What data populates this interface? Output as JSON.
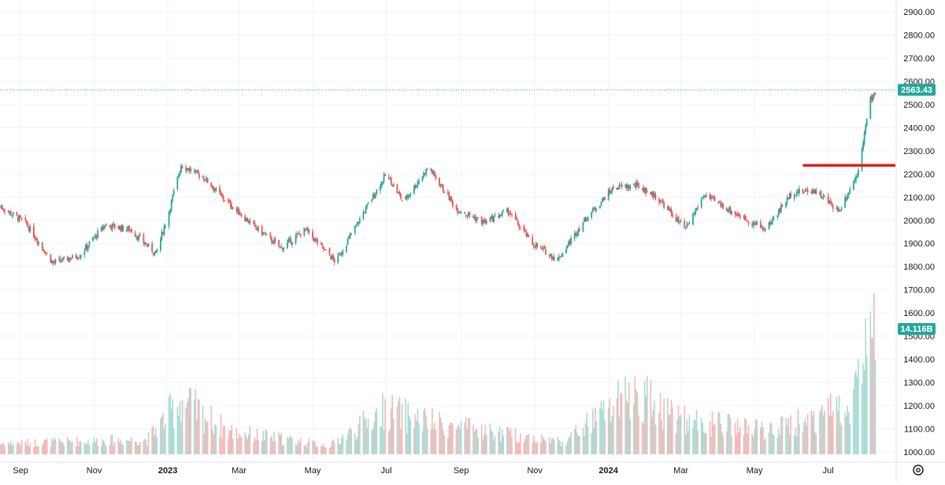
{
  "chart_data": {
    "type": "candlestick",
    "price_axis": {
      "ticks": [
        "2900.00",
        "2800.00",
        "2700.00",
        "2600.00",
        "2500.00",
        "2400.00",
        "2300.00",
        "2200.00",
        "2100.00",
        "2000.00",
        "1900.00",
        "1800.00",
        "1700.00",
        "1600.00",
        "1500.00",
        "1400.00",
        "1300.00",
        "1200.00",
        "1100.00",
        "1000.00"
      ],
      "range": [
        990,
        2950
      ]
    },
    "time_axis": {
      "labels": [
        "Sep",
        "Nov",
        "2023",
        "Mar",
        "May",
        "Jul",
        "Sep",
        "Nov",
        "2024",
        "Mar",
        "May",
        "Jul"
      ],
      "strong": [
        "2023",
        "2024"
      ],
      "range": [
        "2022-08-15",
        "2024-08-10"
      ]
    },
    "last_price": "2563.43",
    "last_volume": "14.116B",
    "last_price_value": 2563.43,
    "resistance_line": 2237,
    "colors": {
      "up": "#26a69a",
      "down": "#ef5350",
      "vol_up": "#a8dcd5",
      "vol_down": "#f7b8b6",
      "line": "#e31b1b",
      "badge": "#26a69a"
    },
    "price_path": [
      [
        "2022-08-15",
        2060
      ],
      [
        "2022-09-05",
        1990
      ],
      [
        "2022-09-28",
        1815
      ],
      [
        "2022-10-20",
        1850
      ],
      [
        "2022-11-10",
        1980
      ],
      [
        "2022-12-01",
        1960
      ],
      [
        "2022-12-22",
        1855
      ],
      [
        "2023-01-01",
        2020
      ],
      [
        "2023-01-12",
        2240
      ],
      [
        "2023-02-01",
        2180
      ],
      [
        "2023-02-15",
        2100
      ],
      [
        "2023-03-10",
        1990
      ],
      [
        "2023-04-05",
        1880
      ],
      [
        "2023-04-25",
        1960
      ],
      [
        "2023-05-20",
        1820
      ],
      [
        "2023-06-15",
        2060
      ],
      [
        "2023-07-01",
        2200
      ],
      [
        "2023-07-15",
        2080
      ],
      [
        "2023-08-05",
        2230
      ],
      [
        "2023-08-28",
        2050
      ],
      [
        "2023-09-20",
        1990
      ],
      [
        "2023-10-10",
        2040
      ],
      [
        "2023-10-30",
        1900
      ],
      [
        "2023-11-20",
        1830
      ],
      [
        "2023-12-12",
        2000
      ],
      [
        "2024-01-05",
        2140
      ],
      [
        "2024-01-25",
        2150
      ],
      [
        "2024-02-10",
        2100
      ],
      [
        "2024-03-05",
        1960
      ],
      [
        "2024-03-20",
        2110
      ],
      [
        "2024-04-15",
        2030
      ],
      [
        "2024-05-10",
        1960
      ],
      [
        "2024-06-01",
        2120
      ],
      [
        "2024-06-20",
        2130
      ],
      [
        "2024-07-10",
        2040
      ],
      [
        "2024-07-25",
        2200
      ],
      [
        "2024-08-05",
        2520
      ],
      [
        "2024-08-10",
        2563
      ]
    ],
    "volume_path": [
      [
        "2022-08-15",
        1040
      ],
      [
        "2022-12-15",
        1060
      ],
      [
        "2023-01-12",
        1250
      ],
      [
        "2023-02-20",
        1100
      ],
      [
        "2023-05-15",
        1030
      ],
      [
        "2023-06-30",
        1200
      ],
      [
        "2023-08-15",
        1130
      ],
      [
        "2023-10-15",
        1080
      ],
      [
        "2023-11-25",
        1050
      ],
      [
        "2024-01-05",
        1220
      ],
      [
        "2024-01-25",
        1280
      ],
      [
        "2024-03-05",
        1150
      ],
      [
        "2024-05-15",
        1100
      ],
      [
        "2024-06-25",
        1180
      ],
      [
        "2024-07-20",
        1250
      ],
      [
        "2024-08-05",
        1560
      ],
      [
        "2024-08-10",
        1560
      ]
    ]
  }
}
